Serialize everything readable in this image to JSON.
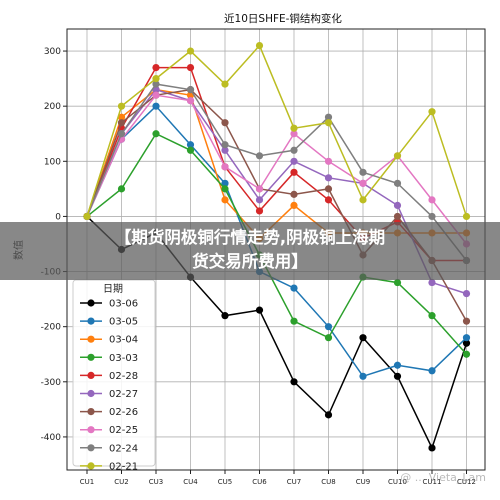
{
  "chart_data": {
    "type": "line",
    "title": "近10日SHFE-铜结构变化",
    "ylabel": "数值",
    "xlabel": "",
    "categories": [
      "CU1",
      "CU2",
      "CU3",
      "CU4",
      "CU5",
      "CU6",
      "CU7",
      "CU8",
      "CU9",
      "CU10",
      "CU11",
      "CU12"
    ],
    "ylim": [
      -460,
      340
    ],
    "yticks": [
      -400,
      -300,
      -200,
      -100,
      0,
      100,
      200,
      300
    ],
    "grid": true,
    "legend_title": "日期",
    "legend_position": "lower-left",
    "series": [
      {
        "name": "03-06",
        "color": "#000000",
        "values": [
          0,
          -60,
          -30,
          -110,
          -180,
          -170,
          -300,
          -360,
          -220,
          -290,
          -420,
          -230
        ]
      },
      {
        "name": "03-05",
        "color": "#1f77b4",
        "values": [
          0,
          140,
          200,
          130,
          60,
          -100,
          -130,
          -200,
          -290,
          -270,
          -280,
          -220
        ]
      },
      {
        "name": "03-04",
        "color": "#ff7f0e",
        "values": [
          0,
          180,
          230,
          220,
          30,
          -40,
          20,
          -30,
          -30,
          -30,
          -30,
          -30
        ]
      },
      {
        "name": "03-03",
        "color": "#2ca02c",
        "values": [
          0,
          50,
          150,
          120,
          50,
          -70,
          -190,
          -220,
          -110,
          -120,
          -180,
          -250
        ]
      },
      {
        "name": "02-28",
        "color": "#d62728",
        "values": [
          0,
          160,
          270,
          270,
          90,
          10,
          80,
          30,
          -40,
          -10,
          -80,
          -80
        ]
      },
      {
        "name": "02-27",
        "color": "#9467bd",
        "values": [
          0,
          150,
          230,
          210,
          120,
          30,
          100,
          70,
          60,
          20,
          -120,
          -140
        ]
      },
      {
        "name": "02-26",
        "color": "#8c564b",
        "values": [
          0,
          170,
          220,
          230,
          170,
          50,
          40,
          50,
          -70,
          0,
          -80,
          -190
        ]
      },
      {
        "name": "02-25",
        "color": "#e377c2",
        "values": [
          0,
          140,
          220,
          210,
          90,
          50,
          150,
          100,
          60,
          110,
          30,
          -50
        ]
      },
      {
        "name": "02-24",
        "color": "#7f7f7f",
        "values": [
          0,
          150,
          240,
          230,
          130,
          110,
          120,
          180,
          80,
          60,
          0,
          -80
        ]
      },
      {
        "name": "02-21",
        "color": "#bcbd22",
        "values": [
          0,
          200,
          250,
          300,
          240,
          310,
          160,
          170,
          30,
          110,
          190,
          0
        ]
      }
    ]
  },
  "overlay": {
    "headline": "【期货阴极铜行情走势,阴极铜上海期\n货交易所费用】"
  },
  "watermark": {
    "text": "@ ... Vieta_Lam"
  }
}
